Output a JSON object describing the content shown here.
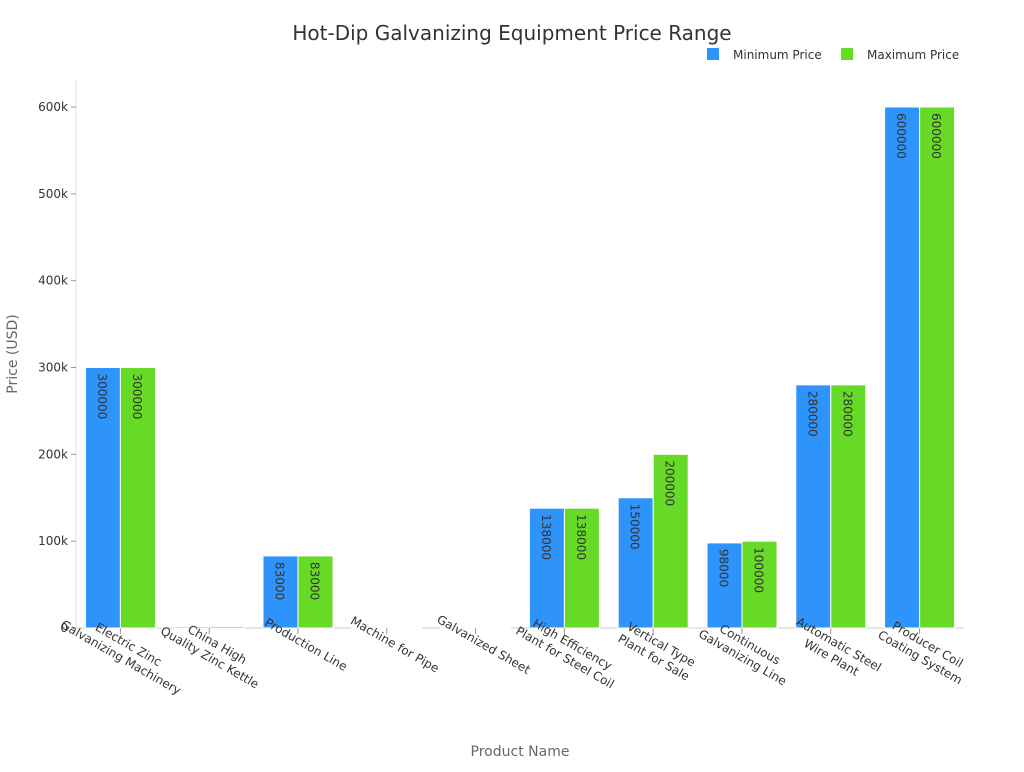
{
  "chart_data": {
    "type": "bar",
    "title": "Hot-Dip Galvanizing Equipment Price Range",
    "xlabel": "Product Name",
    "ylabel": "Price (USD)",
    "ylim": [
      0,
      630000
    ],
    "yticks": [
      0,
      100000,
      200000,
      300000,
      400000,
      500000,
      600000
    ],
    "ytick_labels": [
      "0",
      "100k",
      "200k",
      "300k",
      "400k",
      "500k",
      "600k"
    ],
    "legend_position": "top-right",
    "categories": [
      [
        "Electric Zinc",
        "Galvanizing Machinery"
      ],
      [
        "China High",
        "Quality Zinc Kettle"
      ],
      [
        "Production Line"
      ],
      [
        "Machine for Pipe"
      ],
      [
        "Galvanized Sheet"
      ],
      [
        "High Efficiency",
        "Plant for Steel Coil"
      ],
      [
        "Vertical Type",
        "Plant for Sale"
      ],
      [
        "Continuous",
        "Galvanizing Line"
      ],
      [
        "Automatic Steel",
        "Wire Plant"
      ],
      [
        "Producer Coil",
        "Coating System"
      ]
    ],
    "series": [
      {
        "name": "Minimum Price",
        "color": "#2e93fa",
        "values": [
          300000,
          1500,
          83000,
          300,
          400,
          138000,
          150000,
          98000,
          280000,
          600000
        ]
      },
      {
        "name": "Maximum Price",
        "color": "#66da26",
        "values": [
          300000,
          1800,
          83000,
          500,
          600,
          138000,
          200000,
          100000,
          280000,
          600000
        ]
      }
    ]
  }
}
